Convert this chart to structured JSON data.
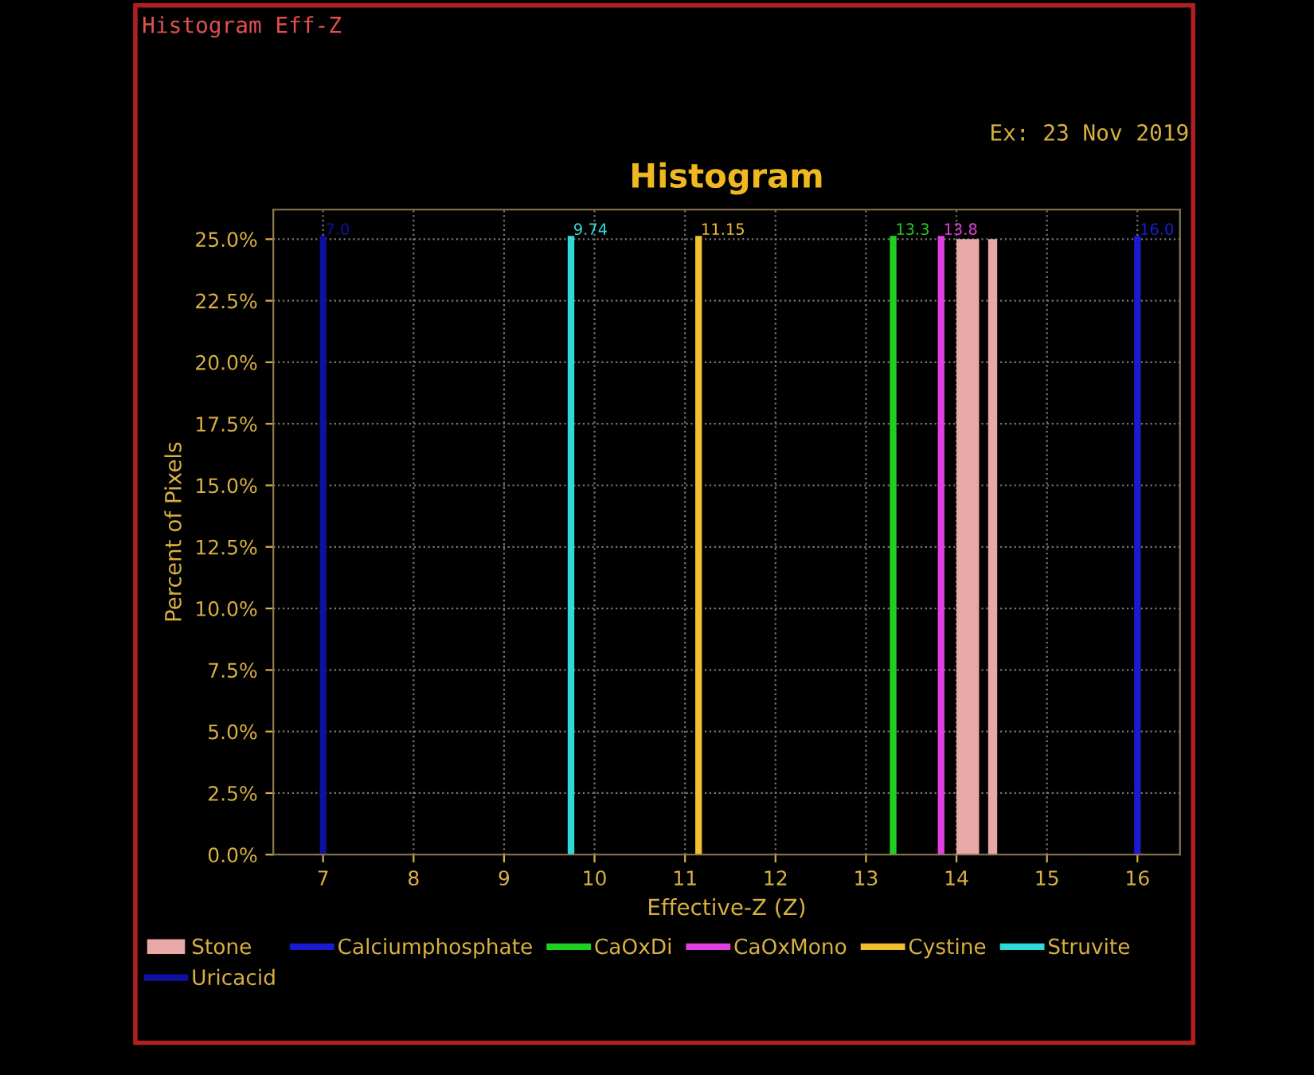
{
  "chart_data": {
    "type": "histogram",
    "title": "Histogram",
    "xlabel": "Effective-Z (Z)",
    "ylabel": "Percent of Pixels",
    "series": [
      {
        "name": "Stone",
        "color": "#e8a8a8",
        "bins": [
          14.0,
          14.25,
          14.35,
          14.45
        ],
        "values": [
          25,
          0,
          25
        ]
      },
      {
        "name": "Calciumphosphate",
        "type": "line",
        "color": "#1a1ad0",
        "x": [
          16.0,
          16.0
        ],
        "values": [
          0,
          25
        ]
      },
      {
        "name": "CaOxDi",
        "type": "line",
        "color": "#20d020",
        "x": [
          13.3,
          13.3
        ],
        "values": [
          0,
          25
        ]
      },
      {
        "name": "CaOxMono",
        "type": "line",
        "color": "#e040e0",
        "x": [
          13.83,
          13.83
        ],
        "values": [
          0,
          25
        ]
      },
      {
        "name": "Cystine",
        "type": "line",
        "color": "#f0c030",
        "x": [
          11.15,
          11.15
        ],
        "values": [
          0,
          25
        ]
      },
      {
        "name": "Struvite",
        "type": "line",
        "color": "#30d8d8",
        "x": [
          9.74,
          9.74
        ],
        "values": [
          0,
          25
        ]
      },
      {
        "name": "Uricacid",
        "type": "line",
        "color": "#1010a0",
        "x": [
          7.0,
          7.0
        ],
        "values": [
          0,
          25
        ]
      }
    ],
    "annotations": [
      "Histogram Eff-Z",
      "Ex: 23 Nov 2019",
      {
        "text": "7.0",
        "x": 7.0,
        "y": 25
      },
      {
        "text": "9.74",
        "x": 9.74,
        "y": 25
      },
      {
        "text": "11.15",
        "x": 11.15,
        "y": 25
      },
      {
        "text": "13.3",
        "x": 13.3,
        "y": 25
      },
      {
        "text": "13.8",
        "x": 13.83,
        "y": 25
      },
      {
        "text": "16.0",
        "x": 16.0,
        "y": 25
      }
    ],
    "xlim": [
      6.45,
      16.47
    ],
    "ylim": [
      0,
      26.2
    ],
    "xticks": [
      7,
      8,
      9,
      10,
      11,
      12,
      13,
      14,
      15,
      16
    ],
    "yticks": [
      {
        "value": 0,
        "label": "0.0%"
      },
      {
        "value": 2.5,
        "label": "2.5%"
      },
      {
        "value": 5,
        "label": "5.0%"
      },
      {
        "value": 7.5,
        "label": "7.5%"
      },
      {
        "value": 10,
        "label": "10.0%"
      },
      {
        "value": 12.5,
        "label": "12.5%"
      },
      {
        "value": 15,
        "label": "15.0%"
      },
      {
        "value": 17.5,
        "label": "17.5%"
      },
      {
        "value": 20,
        "label": "20.0%"
      },
      {
        "value": 22.5,
        "label": "22.5%"
      },
      {
        "value": 25,
        "label": "25.0%"
      }
    ],
    "grid": true,
    "legend": "bottom"
  }
}
